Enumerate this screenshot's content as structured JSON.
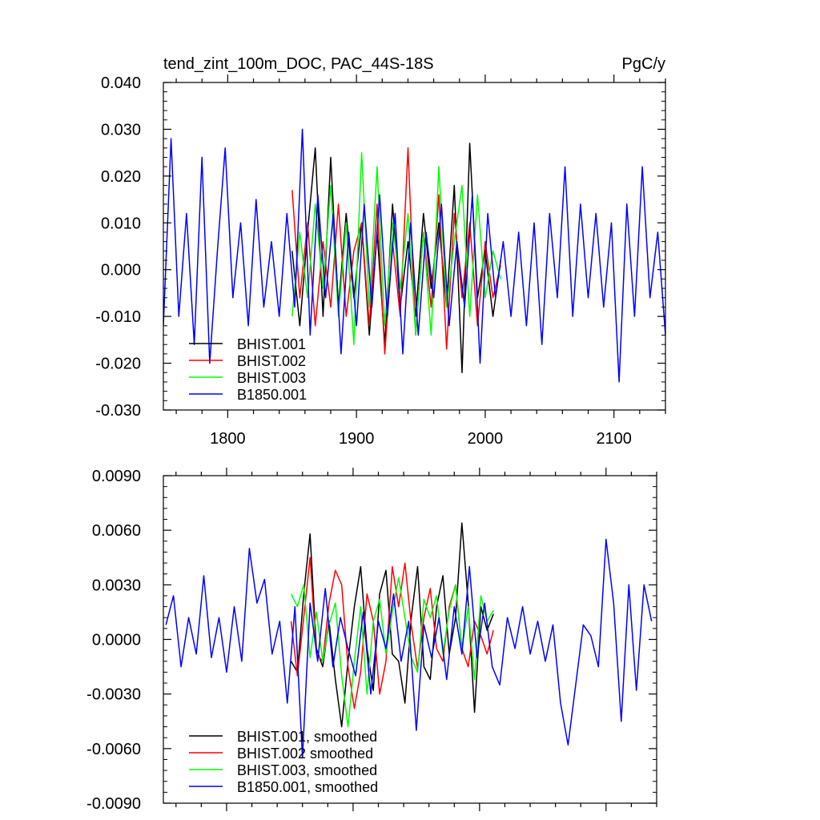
{
  "chart_data": [
    {
      "type": "line",
      "title": "tend_zint_100m_DOC, PAC_44S-18S",
      "units": "PgC/y",
      "xlim": [
        1750,
        2140
      ],
      "ylim": [
        -0.03,
        0.04
      ],
      "x_ticks": [
        1800,
        1900,
        2000,
        2100
      ],
      "x_tick_labels": [
        "1800",
        "1900",
        "2000",
        "2100"
      ],
      "y_ticks": [
        -0.03,
        -0.02,
        -0.01,
        0.0,
        0.01,
        0.02,
        0.03,
        0.04
      ],
      "y_tick_labels": [
        "-0.030",
        "-0.020",
        "-0.010",
        "0.000",
        "0.010",
        "0.020",
        "0.030",
        "0.040"
      ],
      "legend_position": "lower-left",
      "series": [
        {
          "name": "BHIST.001",
          "color": "#000000",
          "x": [
            1850,
            1856,
            1862,
            1868,
            1874,
            1880,
            1886,
            1892,
            1898,
            1904,
            1910,
            1916,
            1922,
            1928,
            1934,
            1940,
            1946,
            1952,
            1958,
            1964,
            1970,
            1976,
            1982,
            1988,
            1994,
            2000,
            2006,
            2012
          ],
          "y": [
            0.004,
            -0.012,
            0.008,
            0.026,
            -0.01,
            0.024,
            -0.008,
            0.012,
            -0.006,
            0.01,
            -0.014,
            0.008,
            -0.016,
            0.014,
            -0.008,
            0.006,
            -0.01,
            0.012,
            -0.004,
            0.01,
            -0.008,
            0.018,
            -0.022,
            0.027,
            -0.006,
            0.004,
            -0.01,
            0.002
          ]
        },
        {
          "name": "BHIST.002",
          "color": "#ff0000",
          "x": [
            1850,
            1856,
            1862,
            1868,
            1874,
            1880,
            1886,
            1892,
            1898,
            1904,
            1910,
            1916,
            1922,
            1928,
            1934,
            1940,
            1946,
            1952,
            1958,
            1964,
            1970,
            1976,
            1982,
            1988,
            1994,
            2000,
            2006,
            2012
          ],
          "y": [
            0.017,
            -0.006,
            0.01,
            -0.012,
            0.006,
            -0.008,
            0.014,
            -0.01,
            0.004,
            0.01,
            -0.012,
            0.014,
            -0.018,
            0.006,
            -0.01,
            0.026,
            -0.014,
            0.008,
            -0.008,
            0.016,
            -0.017,
            0.012,
            -0.006,
            0.01,
            -0.012,
            0.006,
            -0.006,
            0.001
          ]
        },
        {
          "name": "BHIST.003",
          "color": "#00ff00",
          "x": [
            1850,
            1856,
            1862,
            1868,
            1874,
            1880,
            1886,
            1892,
            1898,
            1904,
            1910,
            1916,
            1922,
            1928,
            1934,
            1940,
            1946,
            1952,
            1958,
            1964,
            1970,
            1976,
            1982,
            1988,
            1994,
            2000,
            2006,
            2012
          ],
          "y": [
            -0.01,
            0.008,
            -0.006,
            0.014,
            -0.004,
            0.018,
            -0.01,
            0.01,
            -0.016,
            0.025,
            -0.008,
            0.022,
            -0.012,
            0.01,
            -0.004,
            0.012,
            -0.014,
            0.008,
            -0.014,
            0.022,
            -0.008,
            0.006,
            0.018,
            -0.01,
            0.016,
            -0.006,
            0.004,
            -0.002
          ]
        },
        {
          "name": "B1850.001",
          "color": "#0000ff",
          "x": [
            1750,
            1756,
            1762,
            1768,
            1774,
            1780,
            1786,
            1792,
            1798,
            1804,
            1810,
            1816,
            1822,
            1828,
            1834,
            1840,
            1846,
            1852,
            1858,
            1864,
            1870,
            1876,
            1882,
            1888,
            1894,
            1900,
            1906,
            1912,
            1918,
            1924,
            1930,
            1936,
            1942,
            1948,
            1954,
            1960,
            1966,
            1972,
            1978,
            1984,
            1990,
            1996,
            2002,
            2008,
            2014,
            2020,
            2026,
            2032,
            2038,
            2044,
            2050,
            2056,
            2062,
            2068,
            2074,
            2080,
            2086,
            2092,
            2098,
            2104,
            2110,
            2116,
            2122,
            2128,
            2134,
            2140
          ],
          "y": [
            -0.012,
            0.028,
            -0.01,
            0.012,
            -0.016,
            0.024,
            -0.02,
            0.004,
            0.026,
            -0.006,
            0.01,
            -0.012,
            0.015,
            -0.008,
            0.006,
            -0.01,
            0.012,
            -0.008,
            0.03,
            -0.014,
            0.016,
            -0.006,
            0.012,
            -0.018,
            0.008,
            -0.012,
            0.014,
            -0.008,
            0.016,
            -0.01,
            0.012,
            -0.018,
            0.01,
            -0.014,
            0.008,
            -0.006,
            0.014,
            -0.012,
            0.006,
            -0.008,
            0.016,
            -0.02,
            0.012,
            -0.006,
            0.006,
            -0.01,
            0.008,
            -0.012,
            0.01,
            -0.016,
            0.012,
            -0.006,
            0.022,
            -0.01,
            0.014,
            -0.006,
            0.012,
            -0.008,
            0.01,
            -0.024,
            0.014,
            -0.01,
            0.022,
            -0.006,
            0.008,
            -0.014
          ]
        }
      ]
    },
    {
      "type": "line",
      "title": "",
      "xlim": [
        1750,
        2140
      ],
      "ylim": [
        -0.009,
        0.009
      ],
      "x_ticks": [
        1800,
        1900,
        2000,
        2100
      ],
      "y_ticks": [
        -0.009,
        -0.006,
        -0.003,
        0.0,
        0.003,
        0.006,
        0.009
      ],
      "y_tick_labels": [
        "-0.0090",
        "-0.0060",
        "-0.0030",
        "0.0000",
        "0.0030",
        "0.0060",
        "0.0090"
      ],
      "legend_position": "lower-left",
      "series": [
        {
          "name": "BHIST.001, smoothed",
          "color": "#000000",
          "x": [
            1851,
            1856,
            1861,
            1866,
            1871,
            1876,
            1881,
            1886,
            1891,
            1896,
            1901,
            1906,
            1911,
            1916,
            1921,
            1926,
            1931,
            1936,
            1941,
            1946,
            1951,
            1956,
            1961,
            1966,
            1971,
            1976,
            1981,
            1986,
            1991,
            1996,
            2001,
            2006,
            2011
          ],
          "y": [
            -0.0012,
            -0.0018,
            0.0025,
            0.0058,
            -0.0005,
            -0.0015,
            0.001,
            -0.0022,
            -0.0048,
            -0.0012,
            0.0018,
            0.004,
            -0.0005,
            -0.0028,
            0.0025,
            0.0038,
            -0.0008,
            -0.0012,
            -0.0035,
            0.0012,
            0.004,
            -0.0015,
            -0.0022,
            0.0018,
            0.0035,
            -0.0008,
            0.0012,
            0.0064,
            0.002,
            -0.004,
            0.0018,
            0.0005,
            0.0014
          ]
        },
        {
          "name": "BHIST.002 smoothed",
          "color": "#ff0000",
          "x": [
            1851,
            1856,
            1861,
            1866,
            1871,
            1876,
            1881,
            1886,
            1891,
            1896,
            1901,
            1906,
            1911,
            1916,
            1921,
            1926,
            1931,
            1936,
            1941,
            1946,
            1951,
            1956,
            1961,
            1966,
            1971,
            1976,
            1981,
            1986,
            1991,
            1996,
            2001,
            2006,
            2011
          ],
          "y": [
            0.001,
            -0.002,
            0.0012,
            0.0045,
            -0.0008,
            -0.0012,
            0.002,
            0.0038,
            0.003,
            -0.0015,
            -0.0038,
            -0.0018,
            0.0025,
            0.001,
            -0.003,
            -0.0012,
            0.004,
            0.0018,
            0.0042,
            0.0008,
            -0.0016,
            0.0012,
            0.0028,
            -0.0005,
            -0.0012,
            0.0018,
            0.003,
            -0.0005,
            -0.0015,
            0.001,
            0.0002,
            -0.0008,
            0.0005
          ]
        },
        {
          "name": "BHIST.003, smoothed",
          "color": "#00ff00",
          "x": [
            1851,
            1856,
            1861,
            1866,
            1871,
            1876,
            1881,
            1886,
            1891,
            1896,
            1901,
            1906,
            1911,
            1916,
            1921,
            1926,
            1931,
            1936,
            1941,
            1946,
            1951,
            1956,
            1961,
            1966,
            1971,
            1976,
            1981,
            1986,
            1991,
            1996,
            2001,
            2006,
            2011
          ],
          "y": [
            0.0025,
            0.0018,
            0.003,
            -0.001,
            0.0015,
            -0.0012,
            0.0008,
            0.002,
            -0.002,
            -0.0048,
            -0.0012,
            0.0018,
            -0.003,
            0.001,
            0.0022,
            -0.0008,
            0.0015,
            0.0034,
            0.0012,
            -0.001,
            -0.0018,
            0.0022,
            0.0012,
            0.0024,
            -0.0008,
            0.0016,
            0.003,
            -0.0006,
            0.0018,
            -0.0022,
            0.0024,
            0.001,
            0.0016
          ]
        },
        {
          "name": "B1850.001, smoothed",
          "color": "#0000ff",
          "x": [
            1752,
            1758,
            1764,
            1770,
            1776,
            1782,
            1788,
            1794,
            1800,
            1806,
            1812,
            1818,
            1824,
            1830,
            1836,
            1842,
            1848,
            1854,
            1860,
            1866,
            1872,
            1878,
            1884,
            1890,
            1896,
            1902,
            1908,
            1914,
            1920,
            1926,
            1932,
            1938,
            1944,
            1950,
            1956,
            1962,
            1968,
            1974,
            1980,
            1986,
            1992,
            1998,
            2004,
            2010,
            2016,
            2022,
            2028,
            2034,
            2040,
            2046,
            2052,
            2058,
            2064,
            2070,
            2076,
            2082,
            2088,
            2094,
            2100,
            2106,
            2112,
            2118,
            2124,
            2130,
            2136
          ],
          "y": [
            0.0008,
            0.0024,
            -0.0015,
            0.0012,
            -0.0008,
            0.0035,
            -0.001,
            0.0012,
            -0.0018,
            0.0018,
            -0.0012,
            0.005,
            0.002,
            0.0033,
            -0.0008,
            0.001,
            -0.0035,
            0.0018,
            -0.0065,
            0.002,
            -0.0012,
            0.0028,
            -0.0015,
            0.0012,
            -0.0005,
            -0.002,
            0.0015,
            -0.003,
            0.001,
            -0.0005,
            0.0025,
            -0.0012,
            0.001,
            -0.005,
            0.0008,
            -0.001,
            0.0012,
            -0.0022,
            0.0018,
            -0.0008,
            0.004,
            -0.001,
            0.002,
            -0.0015,
            -0.0025,
            0.0012,
            -0.0005,
            0.0018,
            -0.0008,
            0.001,
            -0.0012,
            0.0008,
            -0.0035,
            -0.0058,
            -0.0025,
            0.0008,
            0.0002,
            -0.0015,
            0.0055,
            0.002,
            -0.0045,
            0.003,
            -0.0028,
            0.003,
            0.001
          ]
        }
      ]
    }
  ]
}
